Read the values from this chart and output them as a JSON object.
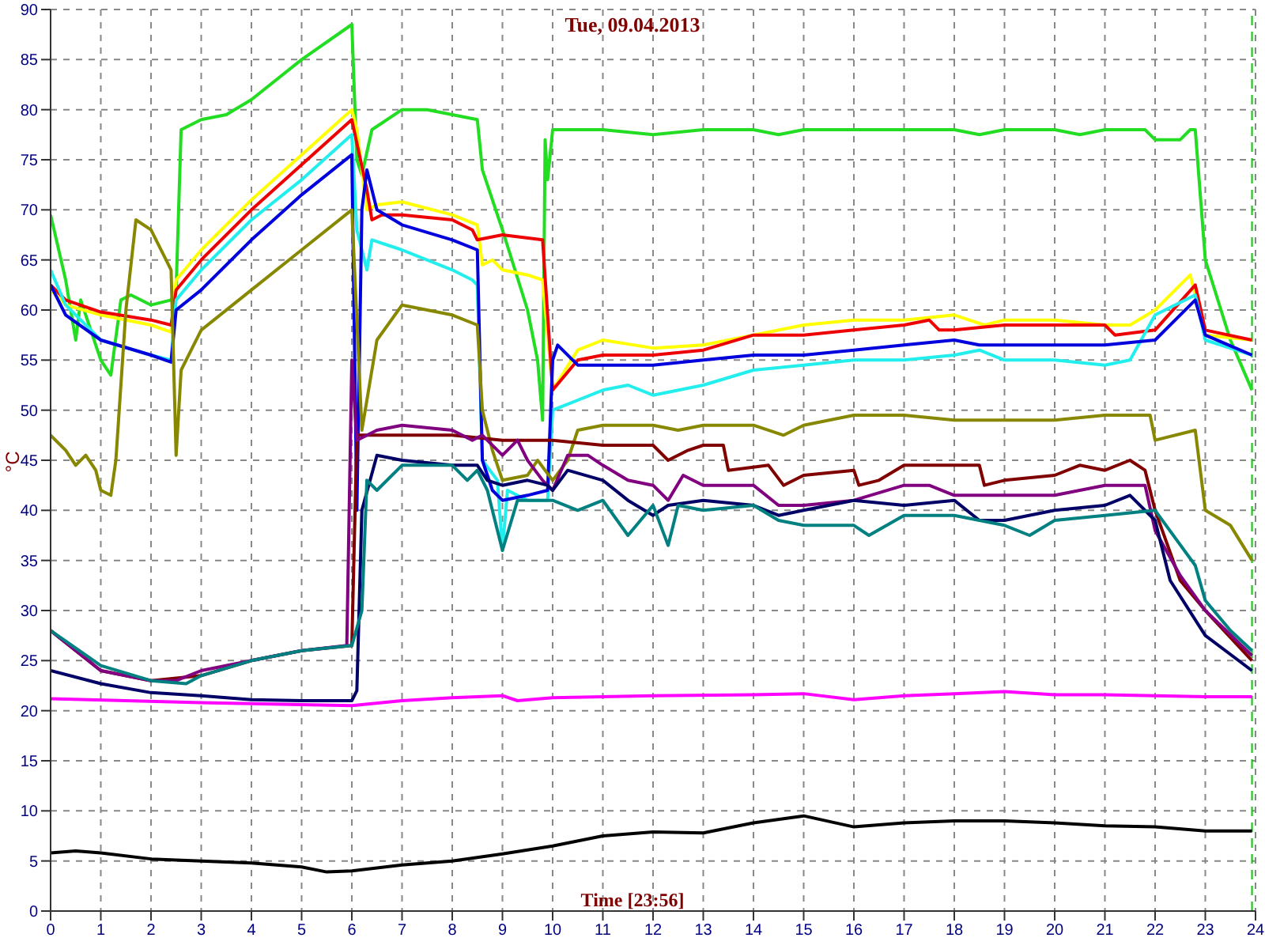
{
  "chart_data": {
    "type": "line",
    "title": "Tue, 09.04.2013",
    "xlabel": "Time [23:56]",
    "ylabel": "°C",
    "xlim": [
      0,
      24
    ],
    "xticks": [
      0,
      1,
      2,
      3,
      4,
      5,
      6,
      7,
      8,
      9,
      10,
      11,
      12,
      13,
      14,
      15,
      16,
      17,
      18,
      19,
      20,
      21,
      22,
      23,
      24
    ],
    "ylim": [
      0,
      90
    ],
    "yticks": [
      0,
      5,
      10,
      15,
      20,
      25,
      30,
      35,
      40,
      45,
      50,
      55,
      60,
      65,
      70,
      75,
      80,
      85,
      90
    ],
    "grid": true,
    "marker": "none",
    "line_style": "solid",
    "ref_lines": [
      {
        "axis": "x",
        "value": 23.93,
        "color": "#00cc00",
        "line_style": "dashed"
      }
    ],
    "series": [
      {
        "color": "#22dd22",
        "x": [
          0,
          0.3,
          0.5,
          0.6,
          0.8,
          1.0,
          1.2,
          1.4,
          1.6,
          2.0,
          2.4,
          2.5,
          2.6,
          3,
          3.5,
          4,
          5,
          6,
          6.1,
          6.2,
          6.4,
          7,
          7.5,
          8.5,
          8.6,
          9,
          9.5,
          9.7,
          9.8,
          9.85,
          9.9,
          10,
          11,
          12,
          13,
          14,
          14.5,
          15,
          16,
          17,
          18,
          18.5,
          19,
          20,
          20.5,
          21,
          21.8,
          22,
          22.5,
          22.7,
          22.8,
          23,
          23.5,
          23.93
        ],
        "values": [
          69.5,
          63,
          57,
          61,
          58,
          55,
          53.5,
          61,
          61.5,
          60.5,
          61,
          62,
          78,
          79,
          79.5,
          81,
          85,
          88.5,
          75,
          73.5,
          78,
          80,
          80,
          79,
          74,
          68,
          60,
          55,
          49,
          77,
          73,
          78,
          78,
          77.5,
          78,
          78,
          77.5,
          78,
          78,
          78,
          78,
          77.5,
          78,
          78,
          77.5,
          78,
          78,
          77,
          77,
          78,
          78,
          65,
          57,
          52
        ]
      },
      {
        "color": "#ffff00",
        "x": [
          0,
          0.3,
          1,
          2,
          2.4,
          2.5,
          3,
          4,
          5,
          6,
          6.1,
          6.3,
          6.5,
          7,
          8,
          8.5,
          8.6,
          8.8,
          9,
          9.5,
          9.8,
          10,
          10.5,
          11,
          12,
          13,
          14,
          15,
          16,
          17,
          18,
          18.6,
          19,
          20,
          21,
          21.5,
          22,
          22.7,
          23,
          23.93
        ],
        "values": [
          62,
          60.5,
          59.5,
          58.5,
          57.8,
          63,
          66,
          71,
          75.5,
          80,
          78,
          70,
          70.5,
          70.8,
          69.5,
          68.5,
          64.5,
          65,
          64,
          63.5,
          63,
          52,
          56,
          57,
          56.2,
          56.5,
          57.5,
          58.5,
          59,
          59,
          59.5,
          58.5,
          59,
          59,
          58.5,
          58.5,
          60,
          63.5,
          57.5,
          57
        ]
      },
      {
        "color": "#ee0000",
        "x": [
          0,
          0.3,
          1,
          2,
          2.4,
          2.5,
          3,
          4,
          5,
          6,
          6.3,
          6.4,
          6.6,
          7,
          8,
          8.4,
          8.5,
          9,
          9.8,
          10,
          10.5,
          11,
          12,
          13,
          14,
          15,
          16,
          17,
          17.5,
          17.7,
          18,
          19,
          20,
          21,
          21.2,
          22,
          22.8,
          23,
          23.93
        ],
        "values": [
          62.5,
          61,
          59.8,
          59,
          58.5,
          62,
          65,
          70,
          74.5,
          79,
          72,
          69,
          69.5,
          69.5,
          69,
          68,
          67,
          67.5,
          67,
          52,
          55,
          55.5,
          55.5,
          56,
          57.5,
          57.5,
          58,
          58.5,
          59,
          58,
          58,
          58.5,
          58.5,
          58.5,
          57.5,
          58,
          62.5,
          58,
          57
        ]
      },
      {
        "color": "#22eeee",
        "x": [
          0,
          0.3,
          1,
          2,
          2.4,
          2.5,
          3,
          4,
          5,
          6,
          6.1,
          6.3,
          6.4,
          7,
          8,
          8.4,
          8.5,
          8.6,
          8.9,
          9,
          9.1,
          9.5,
          9.9,
          10,
          10.5,
          11,
          11.5,
          12,
          13,
          14,
          15,
          16,
          17,
          18,
          18.5,
          19,
          20,
          21,
          21.5,
          22,
          22.8,
          23,
          23.93
        ],
        "values": [
          64,
          60.5,
          57,
          55.5,
          55,
          61,
          64,
          69,
          73,
          77.5,
          68,
          64,
          67,
          66,
          64,
          63,
          62.5,
          45,
          43,
          36,
          42,
          41,
          41,
          50,
          51,
          52,
          52.5,
          51.5,
          52.5,
          54,
          54.5,
          55,
          55,
          55.5,
          56,
          55,
          55,
          54.5,
          55,
          59.5,
          61.5,
          57,
          55.5
        ]
      },
      {
        "color": "#0000dd",
        "x": [
          0,
          0.3,
          1,
          2,
          2.4,
          2.5,
          3,
          4,
          5,
          6,
          6.1,
          6.2,
          6.3,
          6.5,
          7,
          8,
          8.5,
          8.6,
          8.8,
          9,
          9.5,
          9.9,
          10,
          10.1,
          10.5,
          11,
          12,
          13,
          14,
          15,
          16,
          17,
          18,
          18.5,
          19,
          20,
          21,
          22,
          22.8,
          23,
          23.93
        ],
        "values": [
          62.5,
          59.5,
          57,
          55.5,
          54.8,
          60,
          62,
          67,
          71.5,
          75.5,
          40,
          70,
          74,
          70,
          68.5,
          67,
          66,
          45,
          42,
          41,
          41.5,
          42,
          55,
          56.5,
          54.5,
          54.5,
          54.5,
          55,
          55.5,
          55.5,
          56,
          56.5,
          57,
          56.5,
          56.5,
          56.5,
          56.5,
          57,
          61,
          57.5,
          55.5
        ]
      },
      {
        "color": "#888800",
        "x": [
          0,
          0.3,
          0.5,
          0.7,
          0.9,
          1.0,
          1.2,
          1.3,
          1.5,
          1.7,
          2.0,
          2.3,
          2.4,
          2.5,
          2.6,
          3,
          4,
          5,
          6,
          6.2,
          6.5,
          7,
          8,
          8.5,
          8.6,
          8.8,
          9,
          9.5,
          9.7,
          10,
          10.3,
          10.5,
          11,
          12,
          12.5,
          13,
          14,
          14.6,
          15,
          16,
          17,
          18,
          19,
          20,
          21,
          21.9,
          22,
          22.8,
          23,
          23.5,
          23.93
        ],
        "values": [
          47.5,
          46,
          44.5,
          45.5,
          44,
          42,
          41.5,
          45,
          60,
          69,
          68,
          65,
          64,
          45.5,
          54,
          58,
          62,
          66,
          70,
          48,
          57,
          60.5,
          59.5,
          58.5,
          50,
          46,
          43,
          43.5,
          45,
          43,
          45,
          48,
          48.5,
          48.5,
          48,
          48.5,
          48.5,
          47.5,
          48.5,
          49.5,
          49.5,
          49,
          49,
          49,
          49.5,
          49.5,
          47,
          48,
          40,
          38.5,
          35
        ]
      },
      {
        "color": "#800000",
        "x": [
          0,
          1,
          2,
          3,
          4,
          5,
          6,
          6.1,
          7,
          8,
          9,
          10,
          11,
          12,
          12.3,
          12.7,
          13,
          13.4,
          13.5,
          14.3,
          14.6,
          15,
          16,
          16.1,
          16.5,
          17,
          18,
          18.5,
          18.6,
          19,
          20,
          20.5,
          21,
          21.5,
          21.8,
          22,
          22.5,
          23,
          23.93
        ],
        "values": [
          28,
          24,
          23,
          23.5,
          25,
          26,
          26.5,
          47.5,
          47.5,
          47.5,
          47,
          47,
          46.5,
          46.5,
          45,
          46,
          46.5,
          46.5,
          44,
          44.5,
          42.5,
          43.5,
          44,
          42.5,
          43,
          44.5,
          44.5,
          44.5,
          42.5,
          43,
          43.5,
          44.5,
          44,
          45,
          44,
          40,
          33,
          30,
          25
        ]
      },
      {
        "color": "#800080",
        "x": [
          0,
          1,
          2,
          2.5,
          3,
          4,
          5,
          5.9,
          6.0,
          6.1,
          6.5,
          7,
          8,
          8.4,
          8.6,
          9,
          9.3,
          9.5,
          9.8,
          10,
          10.3,
          10.7,
          11,
          11.5,
          12,
          12.3,
          12.6,
          13,
          14,
          14.5,
          15,
          16,
          17,
          17.5,
          18,
          19,
          20,
          21,
          21.8,
          22,
          22.5,
          23,
          23.93
        ],
        "values": [
          28,
          24,
          23,
          23,
          24,
          25,
          26,
          26.5,
          55,
          47,
          48,
          48.5,
          48,
          47,
          47.5,
          45.5,
          47,
          45,
          43,
          42,
          45.5,
          45.5,
          44.5,
          43,
          42.5,
          41,
          43.5,
          42.5,
          42.5,
          40.5,
          40.5,
          41,
          42.5,
          42.5,
          41.5,
          41.5,
          41.5,
          42.5,
          42.5,
          38,
          33.5,
          30,
          25.5
        ]
      },
      {
        "color": "#000066",
        "x": [
          0,
          1,
          2,
          3,
          4,
          5,
          6,
          6.1,
          6.2,
          6.5,
          7,
          8,
          8.5,
          8.7,
          9,
          9.5,
          9.9,
          10,
          10.3,
          11,
          11.5,
          12,
          12.3,
          13,
          14,
          14.5,
          15,
          16,
          17,
          18,
          18.5,
          19,
          20,
          21,
          21.5,
          22,
          22.3,
          23,
          23.93
        ],
        "values": [
          24,
          22.7,
          21.8,
          21.5,
          21.1,
          21,
          21,
          22,
          40,
          45.5,
          45,
          44.5,
          44.5,
          43,
          42.5,
          43,
          42.5,
          42,
          44,
          43,
          41,
          39.5,
          40.5,
          41,
          40.5,
          39.5,
          40,
          41,
          40.5,
          41,
          39,
          39,
          40,
          40.5,
          41.5,
          39,
          33,
          27.5,
          24
        ]
      },
      {
        "color": "#008080",
        "x": [
          0,
          1,
          2,
          2.7,
          3,
          4,
          5,
          6,
          6.2,
          6.3,
          6.5,
          7,
          8,
          8.3,
          8.5,
          8.7,
          9,
          9.3,
          10,
          10.5,
          11,
          11.5,
          12,
          12.3,
          12.5,
          13,
          14,
          14.5,
          15,
          16,
          16.3,
          17,
          18,
          19,
          19.5,
          20,
          21,
          22,
          22.8,
          23,
          23.5,
          23.93
        ],
        "values": [
          28,
          24.5,
          23,
          22.7,
          23.5,
          25,
          26,
          26.5,
          30,
          43,
          42,
          44.5,
          44.5,
          43,
          44,
          42,
          36,
          41,
          41,
          40,
          41,
          37.5,
          40.5,
          36.5,
          40.5,
          40,
          40.5,
          39,
          38.5,
          38.5,
          37.5,
          39.5,
          39.5,
          38.5,
          37.5,
          39,
          39.5,
          40,
          34.5,
          31,
          28,
          26
        ]
      },
      {
        "color": "#ff00ff",
        "x": [
          0,
          3,
          6,
          7,
          8,
          9,
          9.3,
          10,
          12,
          14,
          15,
          16,
          17,
          18,
          19,
          20,
          21,
          22,
          23,
          23.93
        ],
        "values": [
          21.2,
          20.8,
          20.5,
          21,
          21.3,
          21.5,
          21,
          21.3,
          21.5,
          21.6,
          21.7,
          21.1,
          21.5,
          21.7,
          21.9,
          21.6,
          21.6,
          21.5,
          21.4,
          21.4
        ]
      },
      {
        "color": "#000000",
        "x": [
          0,
          0.5,
          1,
          2,
          3,
          4,
          5,
          5.5,
          6,
          7,
          8,
          9,
          10,
          11,
          12,
          13,
          14,
          15,
          16,
          17,
          18,
          19,
          20,
          21,
          22,
          23,
          23.93
        ],
        "values": [
          5.8,
          6,
          5.8,
          5.2,
          5,
          4.8,
          4.4,
          3.9,
          4,
          4.6,
          5,
          5.7,
          6.5,
          7.5,
          7.9,
          7.8,
          8.8,
          9.5,
          8.4,
          8.8,
          9,
          9,
          8.8,
          8.5,
          8.4,
          8,
          8
        ]
      }
    ]
  }
}
